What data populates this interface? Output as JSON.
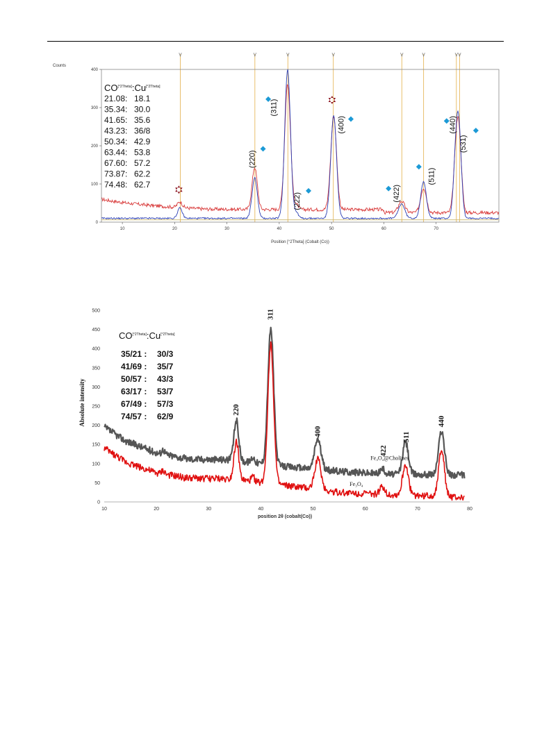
{
  "chart_data": [
    {
      "type": "line",
      "ylabel": "Counts",
      "xlabel": "Position [°2Theta] (Cobalt (Co))",
      "xlim": [
        6,
        82
      ],
      "ylim": [
        0,
        400
      ],
      "x_ticks": [
        10,
        20,
        30,
        40,
        50,
        60,
        70
      ],
      "y_ticks": [
        0,
        100,
        200,
        300,
        400
      ],
      "reference_lines": [
        21.08,
        35.34,
        41.65,
        50.34,
        63.44,
        67.6,
        73.87,
        74.48
      ],
      "table_header": {
        "left": "CO",
        "left_sup": "[°2Theta]",
        "sep": ":",
        "right": "Cu",
        "right_sup": "[°2Theta]"
      },
      "table_rows": [
        [
          "21.08:",
          "18.1"
        ],
        [
          "35.34:",
          "30.0"
        ],
        [
          "41.65:",
          "35.6"
        ],
        [
          "43.23:",
          "36/8"
        ],
        [
          "50.34:",
          "42.9"
        ],
        [
          "63.44:",
          "53.8"
        ],
        [
          "67.60:",
          "57.2"
        ],
        [
          "73.87:",
          "62.2"
        ],
        [
          "74.48:",
          "62.7"
        ]
      ],
      "peak_labels": [
        {
          "label": "(220)",
          "x": 35.3,
          "y": 165
        },
        {
          "label": "(311)",
          "x": 39.4,
          "y": 300
        },
        {
          "label": "(222)",
          "x": 43.9,
          "y": 55
        },
        {
          "label": "(400)",
          "x": 52.3,
          "y": 255
        },
        {
          "label": "(422)",
          "x": 62.9,
          "y": 75
        },
        {
          "label": "(511)",
          "x": 69.6,
          "y": 120
        },
        {
          "label": "(440)",
          "x": 73.6,
          "y": 255
        },
        {
          "label": "(531)",
          "x": 75.6,
          "y": 205
        }
      ],
      "diamond_markers": [
        {
          "x": 37.9,
          "y": 322
        },
        {
          "x": 36.9,
          "y": 192
        },
        {
          "x": 45.6,
          "y": 82
        },
        {
          "x": 53.7,
          "y": 270
        },
        {
          "x": 60.9,
          "y": 88
        },
        {
          "x": 66.7,
          "y": 145
        },
        {
          "x": 72.0,
          "y": 265
        },
        {
          "x": 77.6,
          "y": 240
        }
      ],
      "star_markers": [
        {
          "x": 20.8,
          "y": 85
        },
        {
          "x": 50.1,
          "y": 320
        }
      ],
      "baselines": {
        "red": 45,
        "blue": 10
      },
      "peaks": [
        {
          "x": 21.0,
          "red": 15,
          "blue": 27,
          "width": 0.45
        },
        {
          "x": 35.3,
          "red": 110,
          "blue": 107,
          "width": 0.5
        },
        {
          "x": 41.6,
          "red": 330,
          "blue": 390,
          "width": 0.55
        },
        {
          "x": 43.3,
          "red": 12,
          "blue": 14,
          "width": 0.4
        },
        {
          "x": 50.4,
          "red": 245,
          "blue": 270,
          "width": 0.55
        },
        {
          "x": 63.4,
          "red": 30,
          "blue": 38,
          "width": 0.6
        },
        {
          "x": 67.6,
          "red": 65,
          "blue": 95,
          "width": 0.55
        },
        {
          "x": 73.9,
          "red": 175,
          "blue": 200,
          "width": 0.5
        },
        {
          "x": 74.5,
          "red": 130,
          "blue": 140,
          "width": 0.45
        }
      ]
    },
    {
      "type": "line",
      "ylabel": "Absolute intensity",
      "xlabel": "position 2θ (cobalt(Co))",
      "xlim": [
        10,
        80
      ],
      "ylim": [
        0,
        500
      ],
      "x_ticks": [
        10,
        20,
        30,
        40,
        50,
        60,
        70,
        80
      ],
      "y_ticks": [
        0,
        50,
        100,
        150,
        200,
        250,
        300,
        350,
        400,
        450,
        500
      ],
      "table_header": {
        "left": "CO",
        "left_sup": "[°2Theta]",
        "sep": ":",
        "right": "Cu",
        "right_sup": "[°2Theta]"
      },
      "table_rows": [
        [
          "35/21 :",
          "30/3"
        ],
        [
          "41/69 :",
          "35/7"
        ],
        [
          "50/57 :",
          "43/3"
        ],
        [
          "63/17 :",
          "53/7"
        ],
        [
          "67/49 :",
          "57/3"
        ],
        [
          "74/57 :",
          "62/9"
        ]
      ],
      "peak_labels": [
        {
          "label": "220",
          "x": 35.3,
          "y": 225
        },
        {
          "label": "311",
          "x": 41.9,
          "y": 475
        },
        {
          "label": "400",
          "x": 50.9,
          "y": 168
        },
        {
          "label": "422",
          "x": 63.5,
          "y": 118
        },
        {
          "label": "511",
          "x": 67.9,
          "y": 155
        },
        {
          "label": "440",
          "x": 74.6,
          "y": 195
        }
      ],
      "series": [
        {
          "name": "Fe₃O₄@Cholines",
          "color": "#555555",
          "baseline": [
            [
              10,
              195
            ],
            [
              14,
              160
            ],
            [
              20,
              128
            ],
            [
              26,
              112
            ],
            [
              34,
              110
            ],
            [
              45,
              92
            ],
            [
              55,
              80
            ],
            [
              65,
              72
            ],
            [
              72,
              72
            ],
            [
              79,
              70
            ]
          ],
          "peaks": [
            [
              21.3,
              12,
              0.3
            ],
            [
              35.3,
              105,
              0.45
            ],
            [
              38.5,
              14,
              0.35
            ],
            [
              41.9,
              355,
              0.55
            ],
            [
              50.9,
              80,
              0.6
            ],
            [
              63.3,
              12,
              0.5
            ],
            [
              67.7,
              85,
              0.55
            ],
            [
              74.6,
              115,
              0.55
            ]
          ],
          "label_x": 61,
          "label_y": 110
        },
        {
          "name": "Fe₃O₄",
          "color": "#e01010",
          "baseline": [
            [
              10,
              140
            ],
            [
              14,
              105
            ],
            [
              20,
              75
            ],
            [
              26,
              62
            ],
            [
              34,
              60
            ],
            [
              45,
              42
            ],
            [
              55,
              25
            ],
            [
              65,
              18
            ],
            [
              72,
              16
            ],
            [
              79,
              10
            ]
          ],
          "peaks": [
            [
              21.3,
              10,
              0.3
            ],
            [
              35.3,
              100,
              0.45
            ],
            [
              38.5,
              12,
              0.35
            ],
            [
              41.9,
              365,
              0.55
            ],
            [
              50.9,
              80,
              0.6
            ],
            [
              63.3,
              20,
              0.5
            ],
            [
              67.7,
              80,
              0.55
            ],
            [
              74.6,
              125,
              0.55
            ]
          ],
          "label_x": 57,
          "label_y": 42
        }
      ]
    }
  ]
}
